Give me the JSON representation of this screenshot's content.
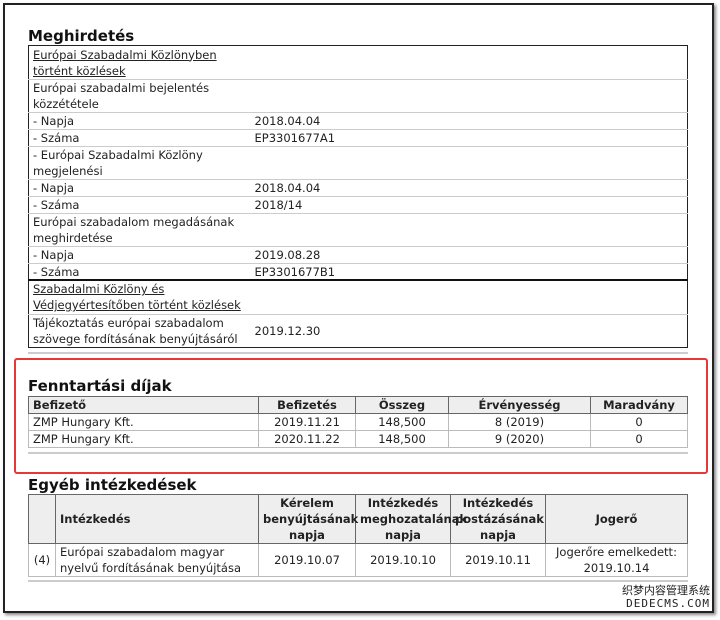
{
  "meghirdetes": {
    "title": "Meghirdetés",
    "link1": "Európai Szabadalmi Közlönyben történt közlések",
    "rows": [
      {
        "label": "Európai szabadalmi bejelentés közzététele",
        "value": ""
      },
      {
        "label": " - Napja",
        "value": "2018.04.04"
      },
      {
        "label": " - Száma",
        "value": "EP3301677A1"
      },
      {
        "label": " - Európai Szabadalmi Közlöny megjelenési",
        "value": ""
      },
      {
        "label": " - Napja",
        "value": "2018.04.04"
      },
      {
        "label": " - Száma",
        "value": "2018/14"
      },
      {
        "label": "Európai szabadalom megadásának meghirdetése",
        "value": ""
      },
      {
        "label": " - Napja",
        "value": "2019.08.28"
      },
      {
        "label": " - Száma",
        "value": "EP3301677B1"
      }
    ],
    "link2": "Szabadalmi Közlöny és Védjegyértesítőben történt közlések",
    "row2": {
      "label": "Tájékoztatás európai szabadalom szövege fordításának benyújtásáról",
      "value": "2019.12.30"
    }
  },
  "fenntartasi": {
    "title": "Fenntartási díjak",
    "highlight_color": "#e53935",
    "headers": [
      "Befizető",
      "Befizetés",
      "Összeg",
      "Érvényesség",
      "Maradvány"
    ],
    "rows": [
      [
        "ZMP Hungary Kft.",
        "2019.11.21",
        "148,500",
        "8 (2019)",
        "0"
      ],
      [
        "ZMP Hungary Kft.",
        "2020.11.22",
        "148,500",
        "9 (2020)",
        "0"
      ]
    ]
  },
  "egyeb": {
    "title": "Egyéb intézkedések",
    "headers": [
      "",
      "Intézkedés",
      "Kérelem benyújtásának napja",
      "Intézkedés meghozatalának napja",
      "Intézkedés postázásának napja",
      "Jogerő"
    ],
    "rows": [
      [
        "(4)",
        "Európai szabadalom magyar nyelvű fordításának benyújtása",
        "2019.10.07",
        "2019.10.10",
        "2019.10.11",
        "Jogerőre emelkedett: 2019.10.14"
      ]
    ]
  },
  "watermark": {
    "line1": "织梦内容管理系统",
    "line2": "DEDECMS.COM"
  }
}
